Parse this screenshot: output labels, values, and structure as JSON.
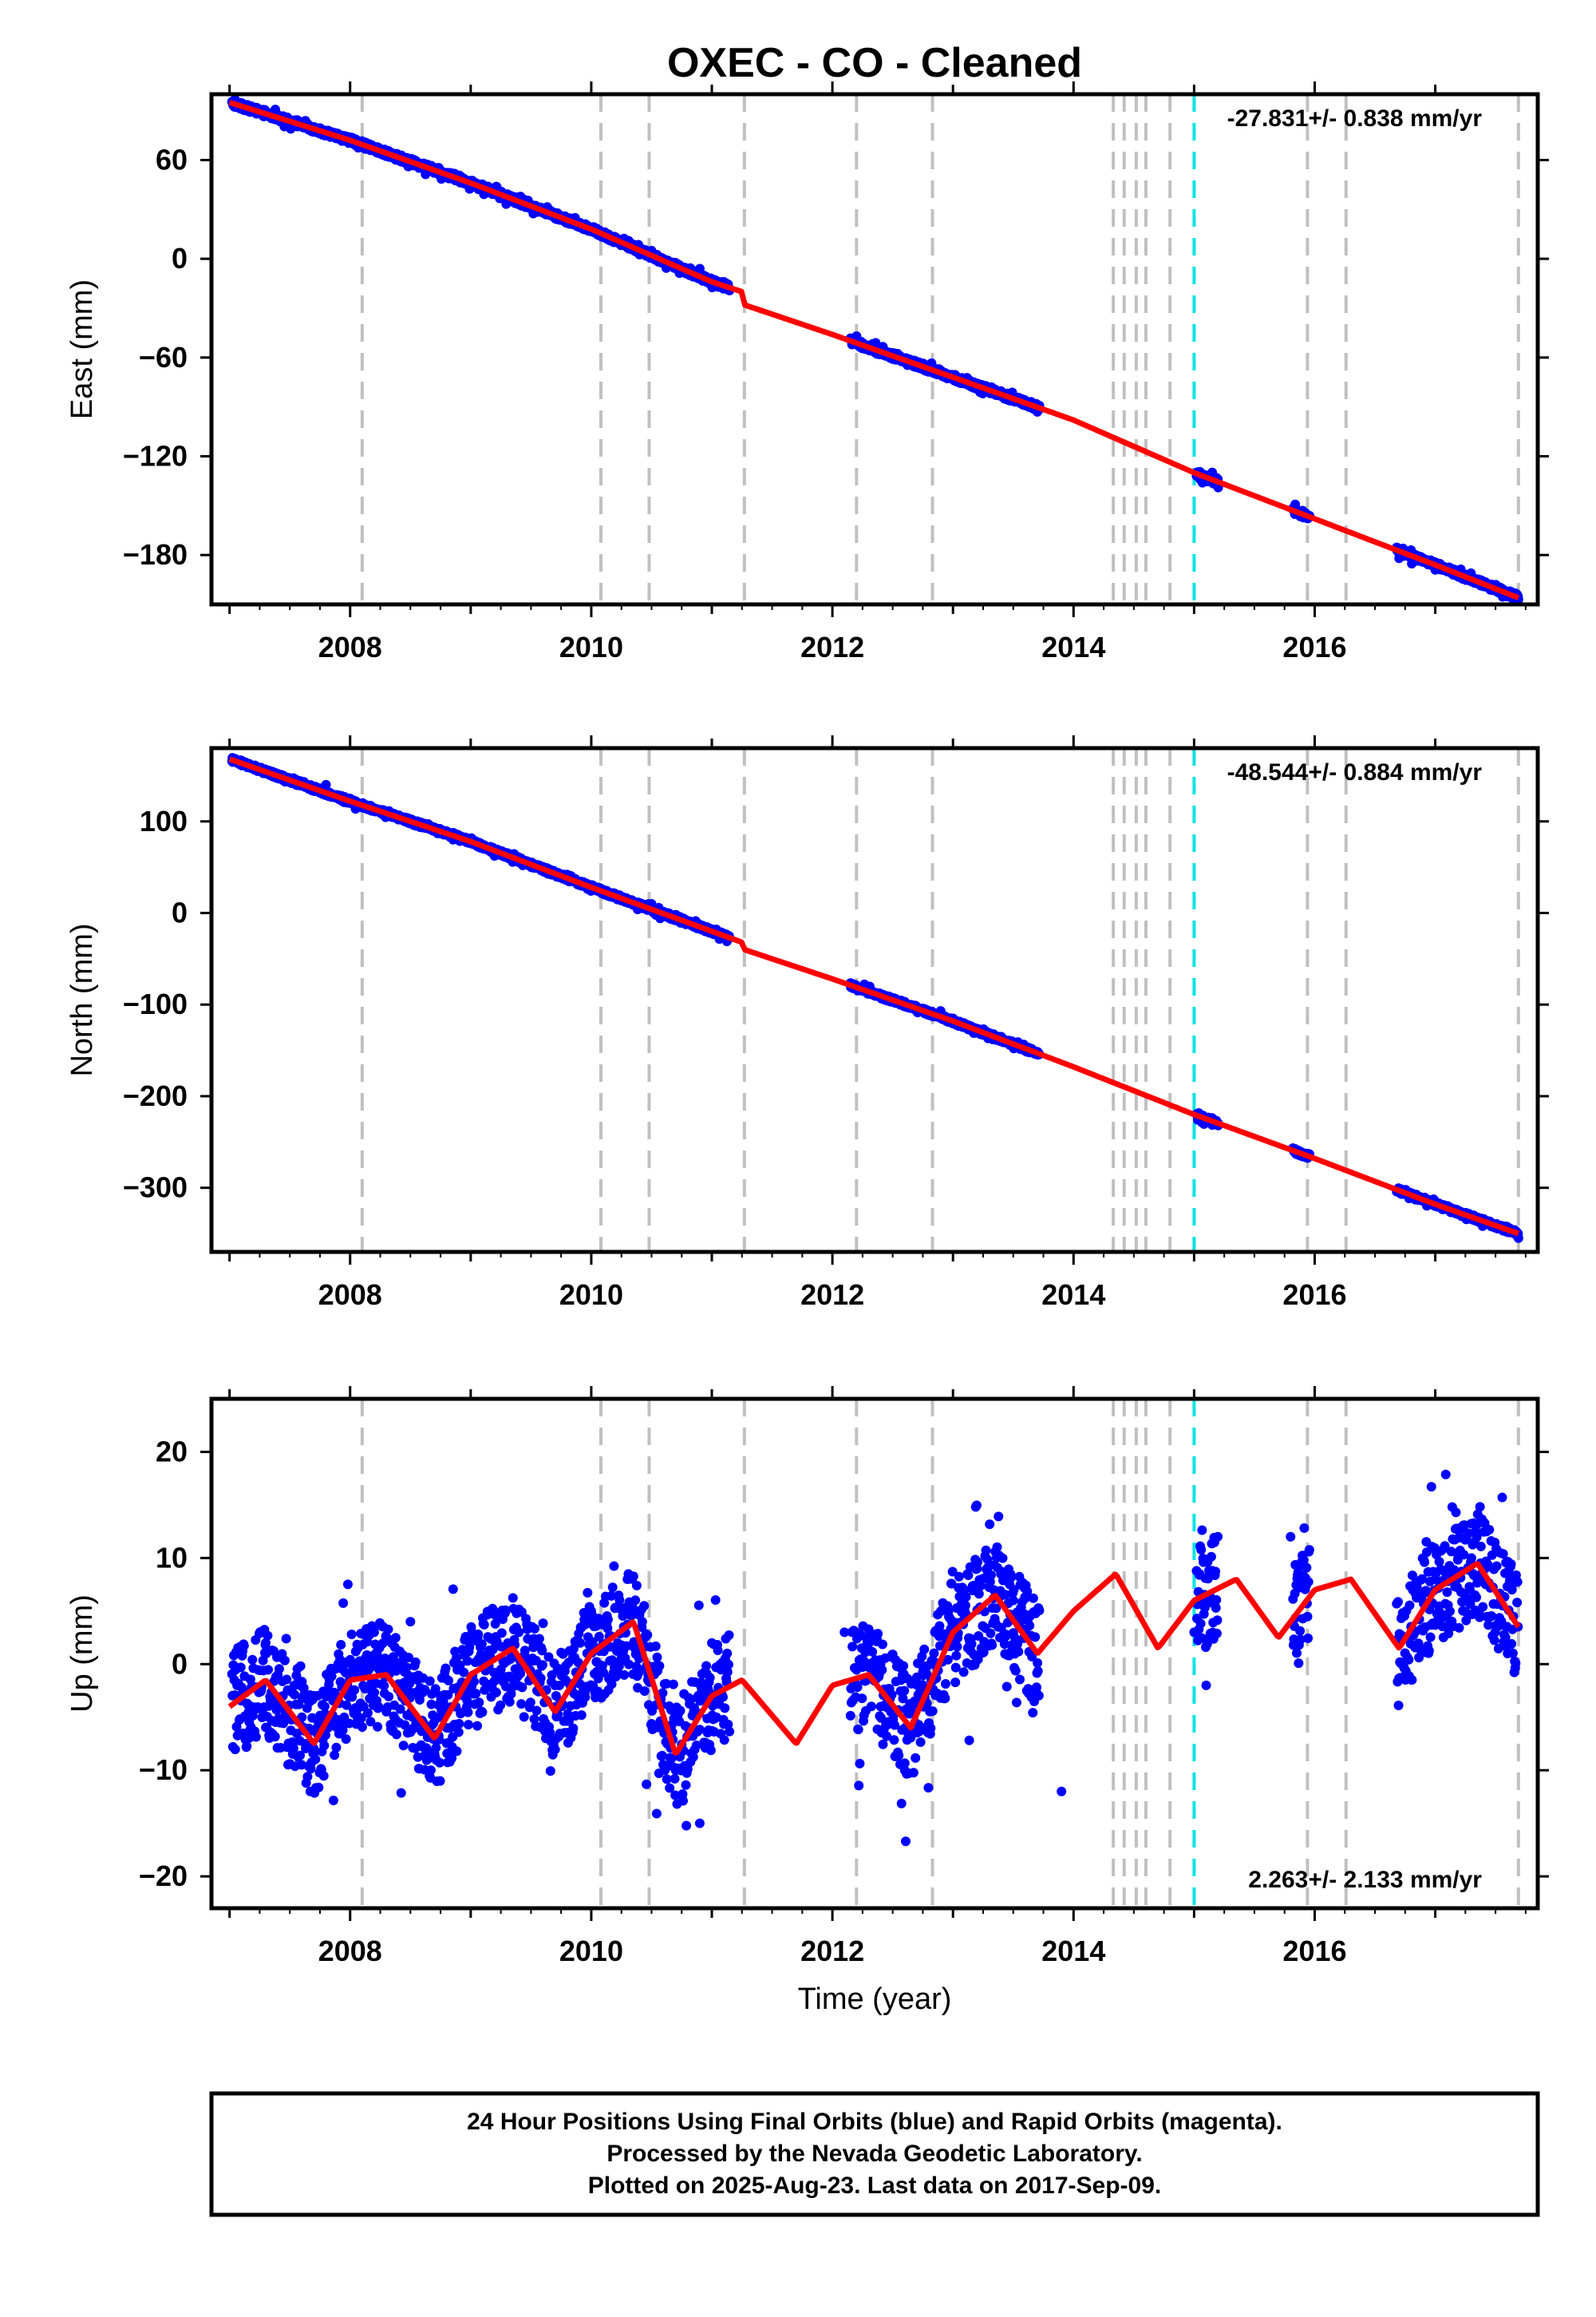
{
  "title": "OXEC  - CO - Cleaned",
  "colors": {
    "data": "#0000ff",
    "model": "#ff0000",
    "event_line": "#c0c0c0",
    "highlight_line": "#00e5e5",
    "frame": "#000000"
  },
  "chart_data": [
    {
      "type": "scatter",
      "panel": "east",
      "ylabel": "East (mm)",
      "xlabel": "",
      "xlim": [
        2006.85,
        2017.85
      ],
      "ylim": [
        -210,
        100
      ],
      "yticks": [
        -180,
        -120,
        -60,
        0,
        60
      ],
      "xticks": [
        2008,
        2010,
        2012,
        2014,
        2016
      ],
      "rate_label": "-27.831+/- 0.838 mm/yr",
      "rate_position": "top-right",
      "series": [
        {
          "kind": "observations",
          "x": [
            2007.05,
            2007.4,
            2007.8,
            2008.0,
            2008.3,
            2008.6,
            2009.0,
            2009.4,
            2009.8,
            2010.1,
            2010.5,
            2010.9,
            2011.1,
            2012.2,
            2012.6,
            2013.0,
            2013.4,
            2013.7,
            2015.05,
            2015.2,
            2015.9,
            2016.7,
            2017.0,
            2017.4,
            2017.69
          ],
          "y": [
            95,
            86,
            77,
            71,
            63,
            55,
            45,
            33,
            22,
            15,
            5,
            -6,
            -14,
            -47,
            -62,
            -71,
            -83,
            -93,
            -134,
            -139,
            -153,
            -182,
            -189,
            -198,
            -207
          ]
        },
        {
          "kind": "model",
          "x": [
            2007.0,
            2008.0,
            2009.0,
            2010.0,
            2011.0,
            2011.25,
            2011.27,
            2012.0,
            2013.0,
            2014.0,
            2015.0,
            2016.0,
            2017.0,
            2017.69
          ],
          "y": [
            95,
            72,
            46,
            18,
            -14,
            -20,
            -28,
            -46,
            -72,
            -98,
            -130,
            -158,
            -186,
            -206
          ]
        }
      ]
    },
    {
      "type": "scatter",
      "panel": "north",
      "ylabel": "North (mm)",
      "xlabel": "",
      "xlim": [
        2006.85,
        2017.85
      ],
      "ylim": [
        -370,
        180
      ],
      "yticks": [
        -300,
        -200,
        -100,
        0,
        100
      ],
      "xticks": [
        2008,
        2010,
        2012,
        2014,
        2016
      ],
      "rate_label": "-48.544+/- 0.884 mm/yr",
      "rate_position": "top-right",
      "series": [
        {
          "kind": "observations",
          "x": [
            2007.05,
            2007.4,
            2007.8,
            2008.0,
            2008.3,
            2008.6,
            2009.0,
            2009.4,
            2009.8,
            2010.1,
            2010.5,
            2010.9,
            2011.1,
            2012.2,
            2012.6,
            2013.0,
            2013.4,
            2013.7,
            2015.05,
            2015.2,
            2015.9,
            2016.7,
            2017.0,
            2017.4,
            2017.69
          ],
          "y": [
            168,
            152,
            140,
            125,
            108,
            98,
            80,
            60,
            42,
            25,
            10,
            -15,
            -25,
            -80,
            -97,
            -115,
            -135,
            -152,
            -225,
            -232,
            -262,
            -305,
            -320,
            -338,
            -355
          ]
        },
        {
          "kind": "model",
          "x": [
            2007.0,
            2008.0,
            2009.0,
            2010.0,
            2011.0,
            2011.25,
            2011.27,
            2012.0,
            2013.0,
            2014.0,
            2015.0,
            2016.0,
            2017.0,
            2017.69
          ],
          "y": [
            168,
            122,
            78,
            28,
            -20,
            -32,
            -40,
            -72,
            -118,
            -168,
            -220,
            -268,
            -318,
            -350
          ]
        }
      ]
    },
    {
      "type": "scatter",
      "panel": "up",
      "ylabel": "Up (mm)",
      "xlabel": "Time (year)",
      "xlim": [
        2006.85,
        2017.85
      ],
      "ylim": [
        -23,
        25
      ],
      "yticks": [
        -20,
        -10,
        0,
        10,
        20
      ],
      "xticks": [
        2008,
        2010,
        2012,
        2014,
        2016
      ],
      "rate_label": "2.263+/- 2.133 mm/yr",
      "rate_position": "bottom-right",
      "series": [
        {
          "kind": "observations",
          "x": [
            2007.1,
            2007.3,
            2007.6,
            2007.9,
            2008.2,
            2008.5,
            2008.8,
            2009.1,
            2009.4,
            2009.7,
            2010.0,
            2010.3,
            2010.7,
            2010.9,
            2011.0,
            2012.1,
            2012.4,
            2012.6,
            2012.9,
            2013.2,
            2013.5,
            2013.9,
            2015.0,
            2015.1,
            2015.8,
            2016.7,
            2017.0,
            2017.3,
            2017.6
          ],
          "y": [
            -3,
            2,
            -5,
            0,
            3,
            4,
            -6,
            0,
            3,
            -2,
            5,
            8,
            -10,
            -15,
            2,
            3,
            -4,
            -10,
            5,
            9,
            6,
            -12,
            3,
            -2,
            12,
            2,
            8,
            10,
            1
          ]
        },
        {
          "kind": "model",
          "x": [
            2007.0,
            2007.3,
            2007.7,
            2008.0,
            2008.3,
            2008.7,
            2009.0,
            2009.35,
            2009.7,
            2010.0,
            2010.35,
            2010.7,
            2011.0,
            2011.25,
            2011.7,
            2012.0,
            2012.3,
            2012.65,
            2013.0,
            2013.35,
            2013.7,
            2014.0,
            2014.35,
            2014.7,
            2015.0,
            2015.35,
            2015.7,
            2016.0,
            2016.3,
            2016.7,
            2017.0,
            2017.35,
            2017.69
          ],
          "y": [
            -4,
            -1.5,
            -7.5,
            -1.5,
            -1,
            -7,
            -1,
            1.5,
            -4.5,
            1,
            4,
            -8.5,
            -3,
            -1.5,
            -7.5,
            -2,
            -1,
            -6,
            3,
            6.5,
            1,
            5,
            8.5,
            1.5,
            6,
            8,
            2.5,
            7,
            8,
            1.5,
            7,
            9.5,
            3.5
          ]
        }
      ]
    }
  ],
  "event_lines": [
    2008.1,
    2010.08,
    2010.48,
    2011.27,
    2012.2,
    2012.83,
    2014.33,
    2014.42,
    2014.52,
    2014.6,
    2014.8,
    2015.94,
    2016.26,
    2017.69
  ],
  "highlight_line": 2015.0,
  "footer": {
    "line1": "24 Hour Positions Using Final Orbits (blue) and Rapid Orbits (magenta).",
    "line2": "Processed by the Nevada Geodetic Laboratory.",
    "line3": "Plotted on 2025-Aug-23. Last data on 2017-Sep-09."
  }
}
